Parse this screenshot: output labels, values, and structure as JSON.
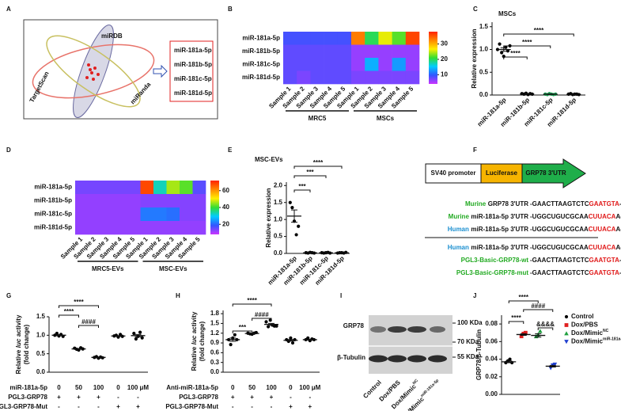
{
  "panel_a": {
    "label": "A",
    "databases": [
      "miRDB",
      "TargetScan",
      "miRanda"
    ],
    "candidates": [
      "miR-181a-5p",
      "miR-181b-5p",
      "miR-181c-5p",
      "miR-181d-5p"
    ]
  },
  "chart_data": [
    {
      "type": "heatmap",
      "panel": "B",
      "rows": [
        "miR-181a-5p",
        "miR-181b-5p",
        "miR-181c-5p",
        "miR-181d-5p"
      ],
      "columns": [
        "Sample 1",
        "Sample 2",
        "Sample 3",
        "Sample 4",
        "Sample 5",
        "Sample 1",
        "Sample 2",
        "Sample 3",
        "Sample 4",
        "Sample 5"
      ],
      "groups": [
        "MRC5",
        "MSCs"
      ],
      "z": [
        [
          9,
          9,
          9,
          9,
          9,
          33,
          20,
          26,
          22,
          36
        ],
        [
          8,
          8,
          8,
          8,
          8,
          6,
          6,
          6,
          6,
          6
        ],
        [
          8,
          8,
          8,
          8,
          8,
          6,
          14,
          6,
          13,
          6
        ],
        [
          8,
          7,
          8,
          8,
          8,
          7,
          7,
          7,
          7,
          7
        ]
      ],
      "zlim": [
        4,
        38
      ],
      "zticks": [
        10,
        20,
        30
      ],
      "colormap": [
        "#cc33ff",
        "#3355ff",
        "#00ccff",
        "#33dd33",
        "#ffee00",
        "#ff8800",
        "#ff2200"
      ]
    },
    {
      "type": "dot",
      "panel": "C",
      "title": "MSCs",
      "title_color": "#1f6fd1",
      "ylabel": "Relative expression",
      "categories": [
        "miR-181a-5p",
        "miR-181b-5p",
        "miR-181c-5p",
        "miR-181d-5p"
      ],
      "points": [
        [
          1.0,
          1.12,
          0.93,
          0.85,
          1.05,
          0.97,
          1.08
        ],
        [
          0.03,
          0.02,
          0.04,
          0.01,
          0.03,
          0.02
        ],
        [
          0.02,
          0.01,
          0.03,
          0.02,
          0.01,
          0.02
        ],
        [
          0.02,
          0.03,
          0.01,
          0.02,
          0.02,
          0.01
        ]
      ],
      "colors": [
        "#000000",
        "#000000",
        "#1a9a50",
        "#000000"
      ],
      "means": [
        1.0,
        0.025,
        0.018,
        0.018
      ],
      "errors": [
        0.04,
        0.005,
        0.004,
        0.004
      ],
      "ylim": [
        0,
        1.6
      ],
      "yticks": [
        {
          "value": 0,
          "label": "0.0"
        },
        0.5,
        {
          "value": 1,
          "label": "1.0"
        },
        1.5
      ],
      "significance": [
        "****",
        "****",
        "****"
      ]
    },
    {
      "type": "heatmap",
      "panel": "D",
      "rows": [
        "miR-181a-5p",
        "miR-181b-5p",
        "miR-181c-5p",
        "miR-181d-5p"
      ],
      "columns": [
        "Sample 1",
        "Sample 2",
        "Sample 3",
        "Sample 4",
        "Sample 5",
        "Sample 1",
        "Sample 2",
        "Sample 3",
        "Sample 4",
        "Sample 5"
      ],
      "groups": [
        "MRC5-EVs",
        "MSC-EVs"
      ],
      "z": [
        [
          14,
          14,
          14,
          14,
          14,
          68,
          33,
          46,
          42,
          16
        ],
        [
          12,
          12,
          12,
          12,
          12,
          13,
          13,
          13,
          13,
          13
        ],
        [
          12,
          12,
          12,
          12,
          12,
          22,
          22,
          21,
          13,
          13
        ],
        [
          12,
          12,
          12,
          12,
          12,
          12,
          12,
          12,
          12,
          12
        ]
      ],
      "zlim": [
        8,
        72
      ],
      "zticks": [
        20,
        40,
        60
      ],
      "colormap": [
        "#cc33ff",
        "#3355ff",
        "#00ccff",
        "#33dd33",
        "#ffee00",
        "#ff8800",
        "#ff2200"
      ]
    },
    {
      "type": "dot",
      "panel": "E",
      "title": "MSC-EVs",
      "title_color": "#e01818",
      "ylabel": "Relative expression",
      "categories": [
        "miR-181a-5p",
        "miR-181b-5p",
        "miR-181c-5p",
        "miR-181d-5p"
      ],
      "points": [
        [
          1.5,
          1.35,
          0.95,
          0.55,
          0.8
        ],
        [
          0.02,
          0.01,
          0.03,
          0.02,
          0.01
        ],
        [
          0.02,
          0.01,
          0.02,
          0.03,
          0.01
        ],
        [
          0.01,
          0.02,
          0.02,
          0.01,
          0.03
        ]
      ],
      "means": [
        1.1,
        0.018,
        0.018,
        0.018
      ],
      "errors": [
        0.18,
        0.004,
        0.004,
        0.004
      ],
      "ylim": [
        0,
        2.1
      ],
      "yticks": [
        {
          "value": 0,
          "label": "0.0"
        },
        0.5,
        {
          "value": 1,
          "label": "1.0"
        },
        1.5,
        {
          "value": 2,
          "label": "2.0"
        }
      ],
      "significance": [
        "****",
        "***",
        "***"
      ]
    },
    {
      "type": "dot",
      "panel": "G",
      "ylabel": [
        "Relative",
        "luc",
        "activity"
      ],
      "ylabel2": "(fold change)",
      "points": [
        [
          1.0,
          1.05,
          0.98,
          1.02,
          0.97
        ],
        [
          0.65,
          0.62,
          0.6,
          0.66,
          0.63
        ],
        [
          0.4,
          0.42,
          0.38,
          0.41,
          0.39
        ],
        [
          0.98,
          1.0,
          0.95,
          1.02,
          0.97
        ],
        [
          1.05,
          0.9,
          0.97,
          1.08,
          0.93
        ]
      ],
      "means": [
        1.0,
        0.63,
        0.4,
        0.98,
        0.99
      ],
      "errors": [
        0.015,
        0.012,
        0.008,
        0.012,
        0.03
      ],
      "ylim": [
        0,
        1.5
      ],
      "yticks": [
        {
          "value": 0,
          "label": "0.0"
        },
        0.5,
        {
          "value": 1,
          "label": "1.0"
        },
        1.5
      ],
      "significance": [
        "****",
        "****",
        "####"
      ],
      "table": [
        {
          "label": "miR-181a-5p",
          "cells": [
            "0",
            "50",
            "100",
            "0",
            "100 μM"
          ]
        },
        {
          "label": "PGL3-GRP78",
          "cells": [
            "+",
            "+",
            "+",
            "-",
            "-"
          ]
        },
        {
          "label": "PGL3-GRP78-Mut",
          "cells": [
            "-",
            "-",
            "-",
            "+",
            "+"
          ]
        }
      ]
    },
    {
      "type": "dot",
      "panel": "H",
      "ylabel": [
        "Relative",
        "luc",
        "activity"
      ],
      "ylabel2": "(fold change)",
      "points": [
        [
          1.0,
          0.85,
          1.05,
          1.15,
          1.0
        ],
        [
          1.2,
          1.18,
          1.17,
          1.2,
          1.22
        ],
        [
          1.55,
          1.4,
          1.6,
          1.45,
          1.42,
          1.42
        ],
        [
          1.0,
          0.95,
          1.05,
          0.9,
          1.0
        ],
        [
          1.0,
          1.05,
          0.97,
          1.02,
          1.0
        ]
      ],
      "means": [
        1.0,
        1.19,
        1.47,
        0.98,
        1.0
      ],
      "errors": [
        0.05,
        0.01,
        0.03,
        0.025,
        0.013
      ],
      "ylim": [
        0,
        1.9
      ],
      "yticks": [
        {
          "value": 0,
          "label": "0.0"
        },
        0.3,
        0.6,
        0.9,
        1.2,
        1.5,
        1.8
      ],
      "significance": [
        "****",
        "####",
        "***"
      ],
      "table": [
        {
          "label": "Anti-miR-181a-5p",
          "cells": [
            "0",
            "50",
            "100",
            "0",
            "100 μM"
          ]
        },
        {
          "label": "PGL3-GRP78",
          "cells": [
            "+",
            "+",
            "+",
            "-",
            "-"
          ]
        },
        {
          "label": "PGL3-GRP78-Mut",
          "cells": [
            "-",
            "-",
            "-",
            "+",
            "+"
          ]
        }
      ]
    },
    {
      "type": "dot",
      "panel": "J",
      "ylabel": "GRP78/β-Tubulin",
      "series": [
        {
          "name": "Control",
          "color": "#000000",
          "marker": "circle",
          "values": [
            0.036,
            0.038,
            0.04,
            0.036
          ]
        },
        {
          "name": "Dox/PBS",
          "color": "#e02020",
          "marker": "square",
          "values": [
            0.066,
            0.069,
            0.07
          ]
        },
        {
          "name": "Dox/Mimic",
          "name_sup": "NC",
          "color": "#20a040",
          "marker": "triangle",
          "values": [
            0.066,
            0.068,
            0.072
          ]
        },
        {
          "name": "Dox/Mimic",
          "name_sup": "miR-181a-5p",
          "color": "#2040d0",
          "marker": "triangle-down",
          "values": [
            0.03,
            0.033,
            0.034
          ]
        }
      ],
      "means": [
        0.037,
        0.068,
        0.067,
        0.032
      ],
      "errors": [
        0.001,
        0.001,
        0.002,
        0.001
      ],
      "ylim": [
        0,
        0.09
      ],
      "yticks": [
        {
          "value": 0,
          "label": "0.00"
        },
        {
          "value": 0.02,
          "label": "0.02"
        },
        {
          "value": 0.04,
          "label": "0.04"
        },
        {
          "value": 0.06,
          "label": "0.06"
        },
        {
          "value": 0.08,
          "label": "0.08"
        }
      ],
      "significance": [
        "****",
        "####",
        "****",
        "&&&&"
      ]
    }
  ],
  "panel_f": {
    "label": "F",
    "construct": [
      "SV40 promoter",
      "Luciferase",
      "GRP78 3'UTR"
    ],
    "alignment": [
      {
        "name": [
          {
            "text": "Murine",
            "color": "#22aa22"
          },
          {
            "text": "GRP78 3'UTR"
          }
        ],
        "seq": [
          {
            "text": "-GAACTTAAGTCTC"
          },
          {
            "text": "GAATGTA",
            "color": "#e01818"
          },
          {
            "text": "-"
          }
        ]
      },
      {
        "name": [
          {
            "text": "Murine",
            "color": "#22aa22"
          },
          {
            "text": "miR-181a-5p 3'UTR"
          }
        ],
        "seq": [
          {
            "text": "-UGGCUGUCGCAA"
          },
          {
            "text": "CUUACA",
            "color": "#e01818"
          },
          {
            "text": "A-"
          }
        ]
      },
      {
        "name": [
          {
            "text": "Human",
            "color": "#1a8fd0"
          },
          {
            "text": "miR-181a-5p 3'UTR"
          }
        ],
        "seq": [
          {
            "text": "-UGGCUGUCGCAA"
          },
          {
            "text": "CUUACA",
            "color": "#e01818"
          },
          {
            "text": "A-"
          }
        ]
      },
      {
        "name": [
          {
            "text": "Human",
            "color": "#1a8fd0"
          },
          {
            "text": "miR-181a-5p 3'UTR"
          }
        ],
        "seq": [
          {
            "text": "-UGGCUGUCGCAA"
          },
          {
            "text": "CUUACA",
            "color": "#e01818"
          },
          {
            "text": "A-"
          }
        ]
      },
      {
        "name": [
          {
            "text": "PGL3-Basic-GRP78-wt",
            "color": "#22aa22"
          }
        ],
        "seq": [
          {
            "text": "-GAACTTAAGTCTC"
          },
          {
            "text": "GAATGTA",
            "color": "#e01818"
          },
          {
            "text": "-"
          }
        ]
      },
      {
        "name": [
          {
            "text": "PGL3-Basic-GRP78-mut",
            "color": "#22aa22"
          }
        ],
        "seq": [
          {
            "text": "-GAACTTAAGTCTC"
          },
          {
            "text": "GAATGTA",
            "color": "#e01818"
          },
          {
            "text": "-"
          }
        ]
      }
    ]
  },
  "panel_i": {
    "label": "I",
    "bands": [
      "GRP78",
      "β-Tubulin"
    ],
    "markers": [
      "100 KDa",
      "70 KDa",
      "55 KDa"
    ],
    "lanes": [
      {
        "text": "Control"
      },
      {
        "text": "Dox/PBS"
      },
      {
        "text": "Dox/Mimic",
        "sup": "NC"
      },
      {
        "text": "Dox/Mimic",
        "sup": "miR-181a-5p"
      }
    ]
  }
}
